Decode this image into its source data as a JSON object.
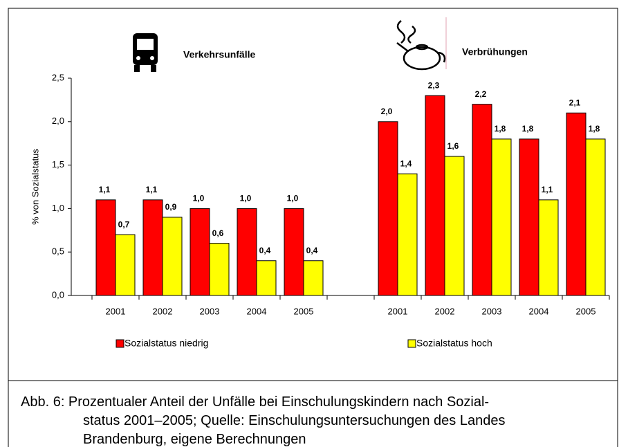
{
  "chart_data": {
    "type": "bar",
    "y_label": "% von Sozialstatus",
    "annotations": [
      "Verkehrsunfälle",
      "Verbrühungen"
    ],
    "categories": [
      "2001",
      "2002",
      "2003",
      "2004",
      "2005",
      null,
      "2001",
      "2002",
      "2003",
      "2004",
      "2005"
    ],
    "series": [
      {
        "name": "Sozialstatus niedrig",
        "color": "#ff0000",
        "values": [
          1.1,
          1.1,
          1.0,
          1.0,
          1.0,
          null,
          2.0,
          2.3,
          2.2,
          1.8,
          2.1
        ],
        "value_labels": [
          "1,1",
          "1,1",
          "1,0",
          "1,0",
          "1,0",
          null,
          "2,0",
          "2,3",
          "2,2",
          "1,8",
          "2,1"
        ]
      },
      {
        "name": "Sozialstatus hoch",
        "color": "#ffff00",
        "values": [
          0.7,
          0.9,
          0.6,
          0.4,
          0.4,
          null,
          1.4,
          1.6,
          1.8,
          1.1,
          1.8
        ],
        "value_labels": [
          "0,7",
          "0,9",
          "0,6",
          "0,4",
          "0,4",
          null,
          "1,4",
          "1,6",
          "1,8",
          "1,1",
          "1,8"
        ]
      }
    ],
    "ylim": [
      0,
      2.5
    ],
    "yticks": [
      {
        "value": 0,
        "label": "0,0"
      },
      {
        "value": 0.5,
        "label": "0,5"
      },
      {
        "value": 1,
        "label": "1,0"
      },
      {
        "value": 1.5,
        "label": "1,5"
      },
      {
        "value": 2,
        "label": "2,0"
      },
      {
        "value": 2.5,
        "label": "2,5"
      }
    ],
    "grid": false,
    "caption": [
      "Abb. 6:  Prozentualer Anteil der Unfälle bei Einschulungskindern nach Sozial-",
      "status 2001–2005; Quelle: Einschulungsuntersuchungen des Landes",
      "Brandenburg, eigene Berechnungen"
    ]
  }
}
